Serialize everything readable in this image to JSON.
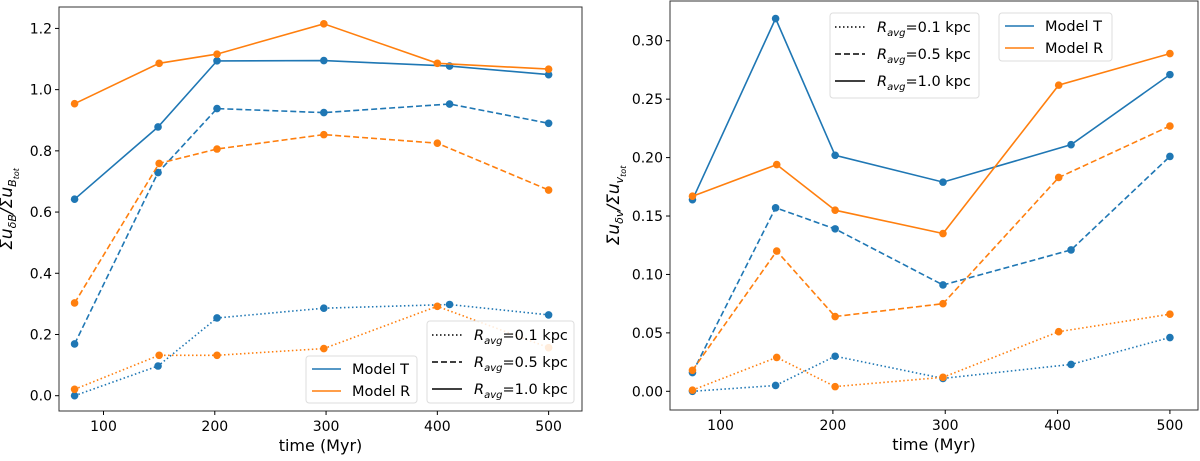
{
  "chart_data": [
    {
      "type": "line",
      "xlabel": "time (Myr)",
      "ylabel_parts": [
        {
          "t": "Σu",
          "lvl": 0
        },
        {
          "t": "δB",
          "lvl": 1
        },
        {
          "t": "/Σu",
          "lvl": 0
        },
        {
          "t": "B",
          "lvl": 1
        },
        {
          "t": "tot",
          "lvl": 2
        }
      ],
      "xlim": [
        60,
        530
      ],
      "ylim": [
        -0.05,
        1.27
      ],
      "xticks": [
        100,
        200,
        300,
        400,
        500
      ],
      "xtick_labels": [
        "100",
        "200",
        "300",
        "400",
        "500"
      ],
      "yticks": [
        0.0,
        0.2,
        0.4,
        0.6,
        0.8,
        1.0,
        1.2
      ],
      "ytick_labels": [
        "0.0",
        "0.2",
        "0.4",
        "0.6",
        "0.8",
        "1.0",
        "1.2"
      ],
      "grid": false,
      "colors": {
        "Model T": "#1f77b4",
        "Model R": "#ff7f0e"
      },
      "series": [
        {
          "model": "Model T",
          "style": "solid",
          "x": [
            74,
            149,
            202,
            298,
            411,
            500
          ],
          "y": [
            0.642,
            0.878,
            1.094,
            1.095,
            1.077,
            1.049
          ]
        },
        {
          "model": "Model R",
          "style": "solid",
          "x": [
            74,
            150,
            202,
            298,
            400,
            500
          ],
          "y": [
            0.954,
            1.086,
            1.116,
            1.215,
            1.086,
            1.067
          ]
        },
        {
          "model": "Model T",
          "style": "dashed",
          "x": [
            74,
            149,
            202,
            298,
            411,
            500
          ],
          "y": [
            0.169,
            0.729,
            0.938,
            0.925,
            0.953,
            0.89
          ]
        },
        {
          "model": "Model R",
          "style": "dashed",
          "x": [
            74,
            150,
            202,
            298,
            400,
            500
          ],
          "y": [
            0.303,
            0.759,
            0.806,
            0.853,
            0.825,
            0.672
          ]
        },
        {
          "model": "Model T",
          "style": "dotted",
          "x": [
            74,
            149,
            202,
            298,
            411,
            500
          ],
          "y": [
            0.0,
            0.097,
            0.254,
            0.286,
            0.298,
            0.264
          ]
        },
        {
          "model": "Model R",
          "style": "dotted",
          "x": [
            74,
            150,
            202,
            298,
            400,
            500
          ],
          "y": [
            0.021,
            0.132,
            0.132,
            0.154,
            0.292,
            0.157
          ]
        }
      ],
      "legend_models": {
        "placement": "lower-center-right",
        "entries": [
          "Model T",
          "Model R"
        ]
      },
      "legend_styles": {
        "placement": "lower-right",
        "entries": [
          {
            "style": "dotted",
            "r": "R",
            "sub": "avg",
            "rest": "=0.1 kpc"
          },
          {
            "style": "dashed",
            "r": "R",
            "sub": "avg",
            "rest": "=0.5 kpc"
          },
          {
            "style": "solid",
            "r": "R",
            "sub": "avg",
            "rest": "=1.0 kpc"
          }
        ]
      }
    },
    {
      "type": "line",
      "xlabel": "time (Myr)",
      "ylabel_parts": [
        {
          "t": "Σu",
          "lvl": 0
        },
        {
          "t": "δv",
          "lvl": 1
        },
        {
          "t": "/Σu",
          "lvl": 0
        },
        {
          "t": "v",
          "lvl": 1
        },
        {
          "t": "tot",
          "lvl": 2
        }
      ],
      "xlim": [
        55,
        525
      ],
      "ylim": [
        -0.016,
        0.334
      ],
      "xticks": [
        100,
        200,
        300,
        400,
        500
      ],
      "xtick_labels": [
        "100",
        "200",
        "300",
        "400",
        "500"
      ],
      "yticks": [
        0.0,
        0.05,
        0.1,
        0.15,
        0.2,
        0.25,
        0.3
      ],
      "ytick_labels": [
        "0.00",
        "0.05",
        "0.10",
        "0.15",
        "0.20",
        "0.25",
        "0.30"
      ],
      "grid": false,
      "colors": {
        "Model T": "#1f77b4",
        "Model R": "#ff7f0e"
      },
      "series": [
        {
          "model": "Model T",
          "style": "solid",
          "x": [
            75,
            149,
            202,
            298,
            412,
            500
          ],
          "y": [
            0.164,
            0.319,
            0.202,
            0.179,
            0.211,
            0.271
          ]
        },
        {
          "model": "Model R",
          "style": "solid",
          "x": [
            75,
            150,
            202,
            298,
            401,
            500
          ],
          "y": [
            0.167,
            0.194,
            0.155,
            0.135,
            0.262,
            0.289
          ]
        },
        {
          "model": "Model T",
          "style": "dashed",
          "x": [
            75,
            149,
            202,
            298,
            412,
            500
          ],
          "y": [
            0.016,
            0.157,
            0.139,
            0.091,
            0.121,
            0.201
          ]
        },
        {
          "model": "Model R",
          "style": "dashed",
          "x": [
            75,
            150,
            202,
            298,
            401,
            500
          ],
          "y": [
            0.018,
            0.12,
            0.064,
            0.075,
            0.183,
            0.227
          ]
        },
        {
          "model": "Model T",
          "style": "dotted",
          "x": [
            75,
            149,
            202,
            298,
            412,
            500
          ],
          "y": [
            0.0,
            0.005,
            0.03,
            0.011,
            0.023,
            0.046
          ]
        },
        {
          "model": "Model R",
          "style": "dotted",
          "x": [
            75,
            150,
            202,
            298,
            401,
            500
          ],
          "y": [
            0.001,
            0.029,
            0.004,
            0.012,
            0.051,
            0.066
          ]
        }
      ],
      "legend_models": {
        "placement": "top-center-right",
        "entries": [
          "Model T",
          "Model R"
        ]
      },
      "legend_styles": {
        "placement": "top-center",
        "entries": [
          {
            "style": "dotted",
            "r": "R",
            "sub": "avg",
            "rest": "=0.1 kpc"
          },
          {
            "style": "dashed",
            "r": "R",
            "sub": "avg",
            "rest": "=0.5 kpc"
          },
          {
            "style": "solid",
            "r": "R",
            "sub": "avg",
            "rest": "=1.0 kpc"
          }
        ]
      }
    }
  ]
}
